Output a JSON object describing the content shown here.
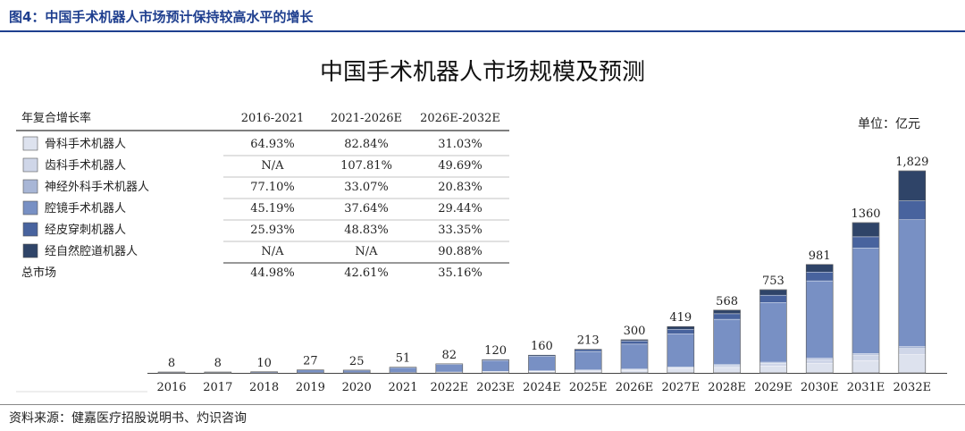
{
  "figure_caption": "图4：中国手术机器人市场预计保持较高水平的增长",
  "unit": "单位：亿元",
  "source": "资料来源：健嘉医疗招股说明书、灼识咨询",
  "colors": {
    "caption": "#1f3f8f",
    "series": [
      "#dde2ee",
      "#cfd6e8",
      "#a8b6d6",
      "#7890c4",
      "#48639e",
      "#2f4468"
    ]
  },
  "table": {
    "header": [
      "年复合增长率",
      "2016-2021",
      "2021-2026E",
      "2026E-2032E"
    ],
    "rows": [
      {
        "label": "骨科手术机器人",
        "values": [
          "64.93%",
          "82.84%",
          "31.03%"
        ]
      },
      {
        "label": "齿科手术机器人",
        "values": [
          "N/A",
          "107.81%",
          "49.69%"
        ]
      },
      {
        "label": "神经外科手术机器人",
        "values": [
          "77.10%",
          "33.07%",
          "20.83%"
        ]
      },
      {
        "label": "腔镜手术机器人",
        "values": [
          "45.19%",
          "37.64%",
          "29.44%"
        ]
      },
      {
        "label": "经皮穿刺机器人",
        "values": [
          "25.93%",
          "48.83%",
          "33.35%"
        ]
      },
      {
        "label": "经自然腔道机器人",
        "values": [
          "N/A",
          "N/A",
          "90.88%"
        ]
      },
      {
        "label": "总市场",
        "values": [
          "44.98%",
          "42.61%",
          "35.16%"
        ]
      }
    ]
  },
  "chart_data": {
    "type": "bar",
    "stacked": true,
    "title": "中国手术机器人市场规模及预测",
    "categories": [
      "2016",
      "2017",
      "2018",
      "2019",
      "2020",
      "2021",
      "2022E",
      "2023E",
      "2024E",
      "2025E",
      "2026E",
      "2027E",
      "2028E",
      "2029E",
      "2030E",
      "2031E",
      "2032E"
    ],
    "totals": [
      8,
      8,
      10,
      27,
      25,
      51,
      82,
      120,
      160,
      213,
      300,
      419,
      568,
      753,
      981,
      1360,
      "1,829"
    ],
    "series": [
      {
        "name": "骨科手术机器人",
        "values": [
          0.3,
          0.5,
          0.8,
          1.2,
          1.5,
          2,
          4,
          7,
          10,
          14,
          22,
          35,
          49,
          62,
          85,
          112,
          165
        ]
      },
      {
        "name": "齿科手术机器人",
        "values": [
          0,
          0,
          0,
          0.2,
          0.3,
          1,
          2,
          3,
          5,
          7,
          7,
          12,
          18,
          25,
          36,
          50,
          56
        ]
      },
      {
        "name": "神经外科手术机器人",
        "values": [
          0.2,
          0.3,
          0.4,
          0.6,
          0.6,
          1,
          2,
          3,
          4,
          5,
          6,
          7,
          8,
          10,
          12,
          14,
          17
        ]
      },
      {
        "name": "腔镜手术机器人",
        "values": [
          7,
          6.5,
          8.2,
          24.5,
          22,
          45,
          70,
          100,
          130,
          168,
          225,
          300,
          410,
          540,
          700,
          955,
          1148
        ]
      },
      {
        "name": "经皮穿刺机器人",
        "values": [
          0.5,
          0.7,
          0.6,
          0.5,
          0.6,
          2,
          4,
          7,
          11,
          19,
          30,
          40,
          50,
          66,
          80,
          100,
          170
        ]
      },
      {
        "name": "经自然腔道机器人",
        "values": [
          0,
          0,
          0,
          0,
          0,
          0,
          0,
          0,
          0,
          0,
          10,
          25,
          33,
          50,
          68,
          129,
          273
        ]
      }
    ],
    "ylim": [
      0,
      1900
    ]
  }
}
